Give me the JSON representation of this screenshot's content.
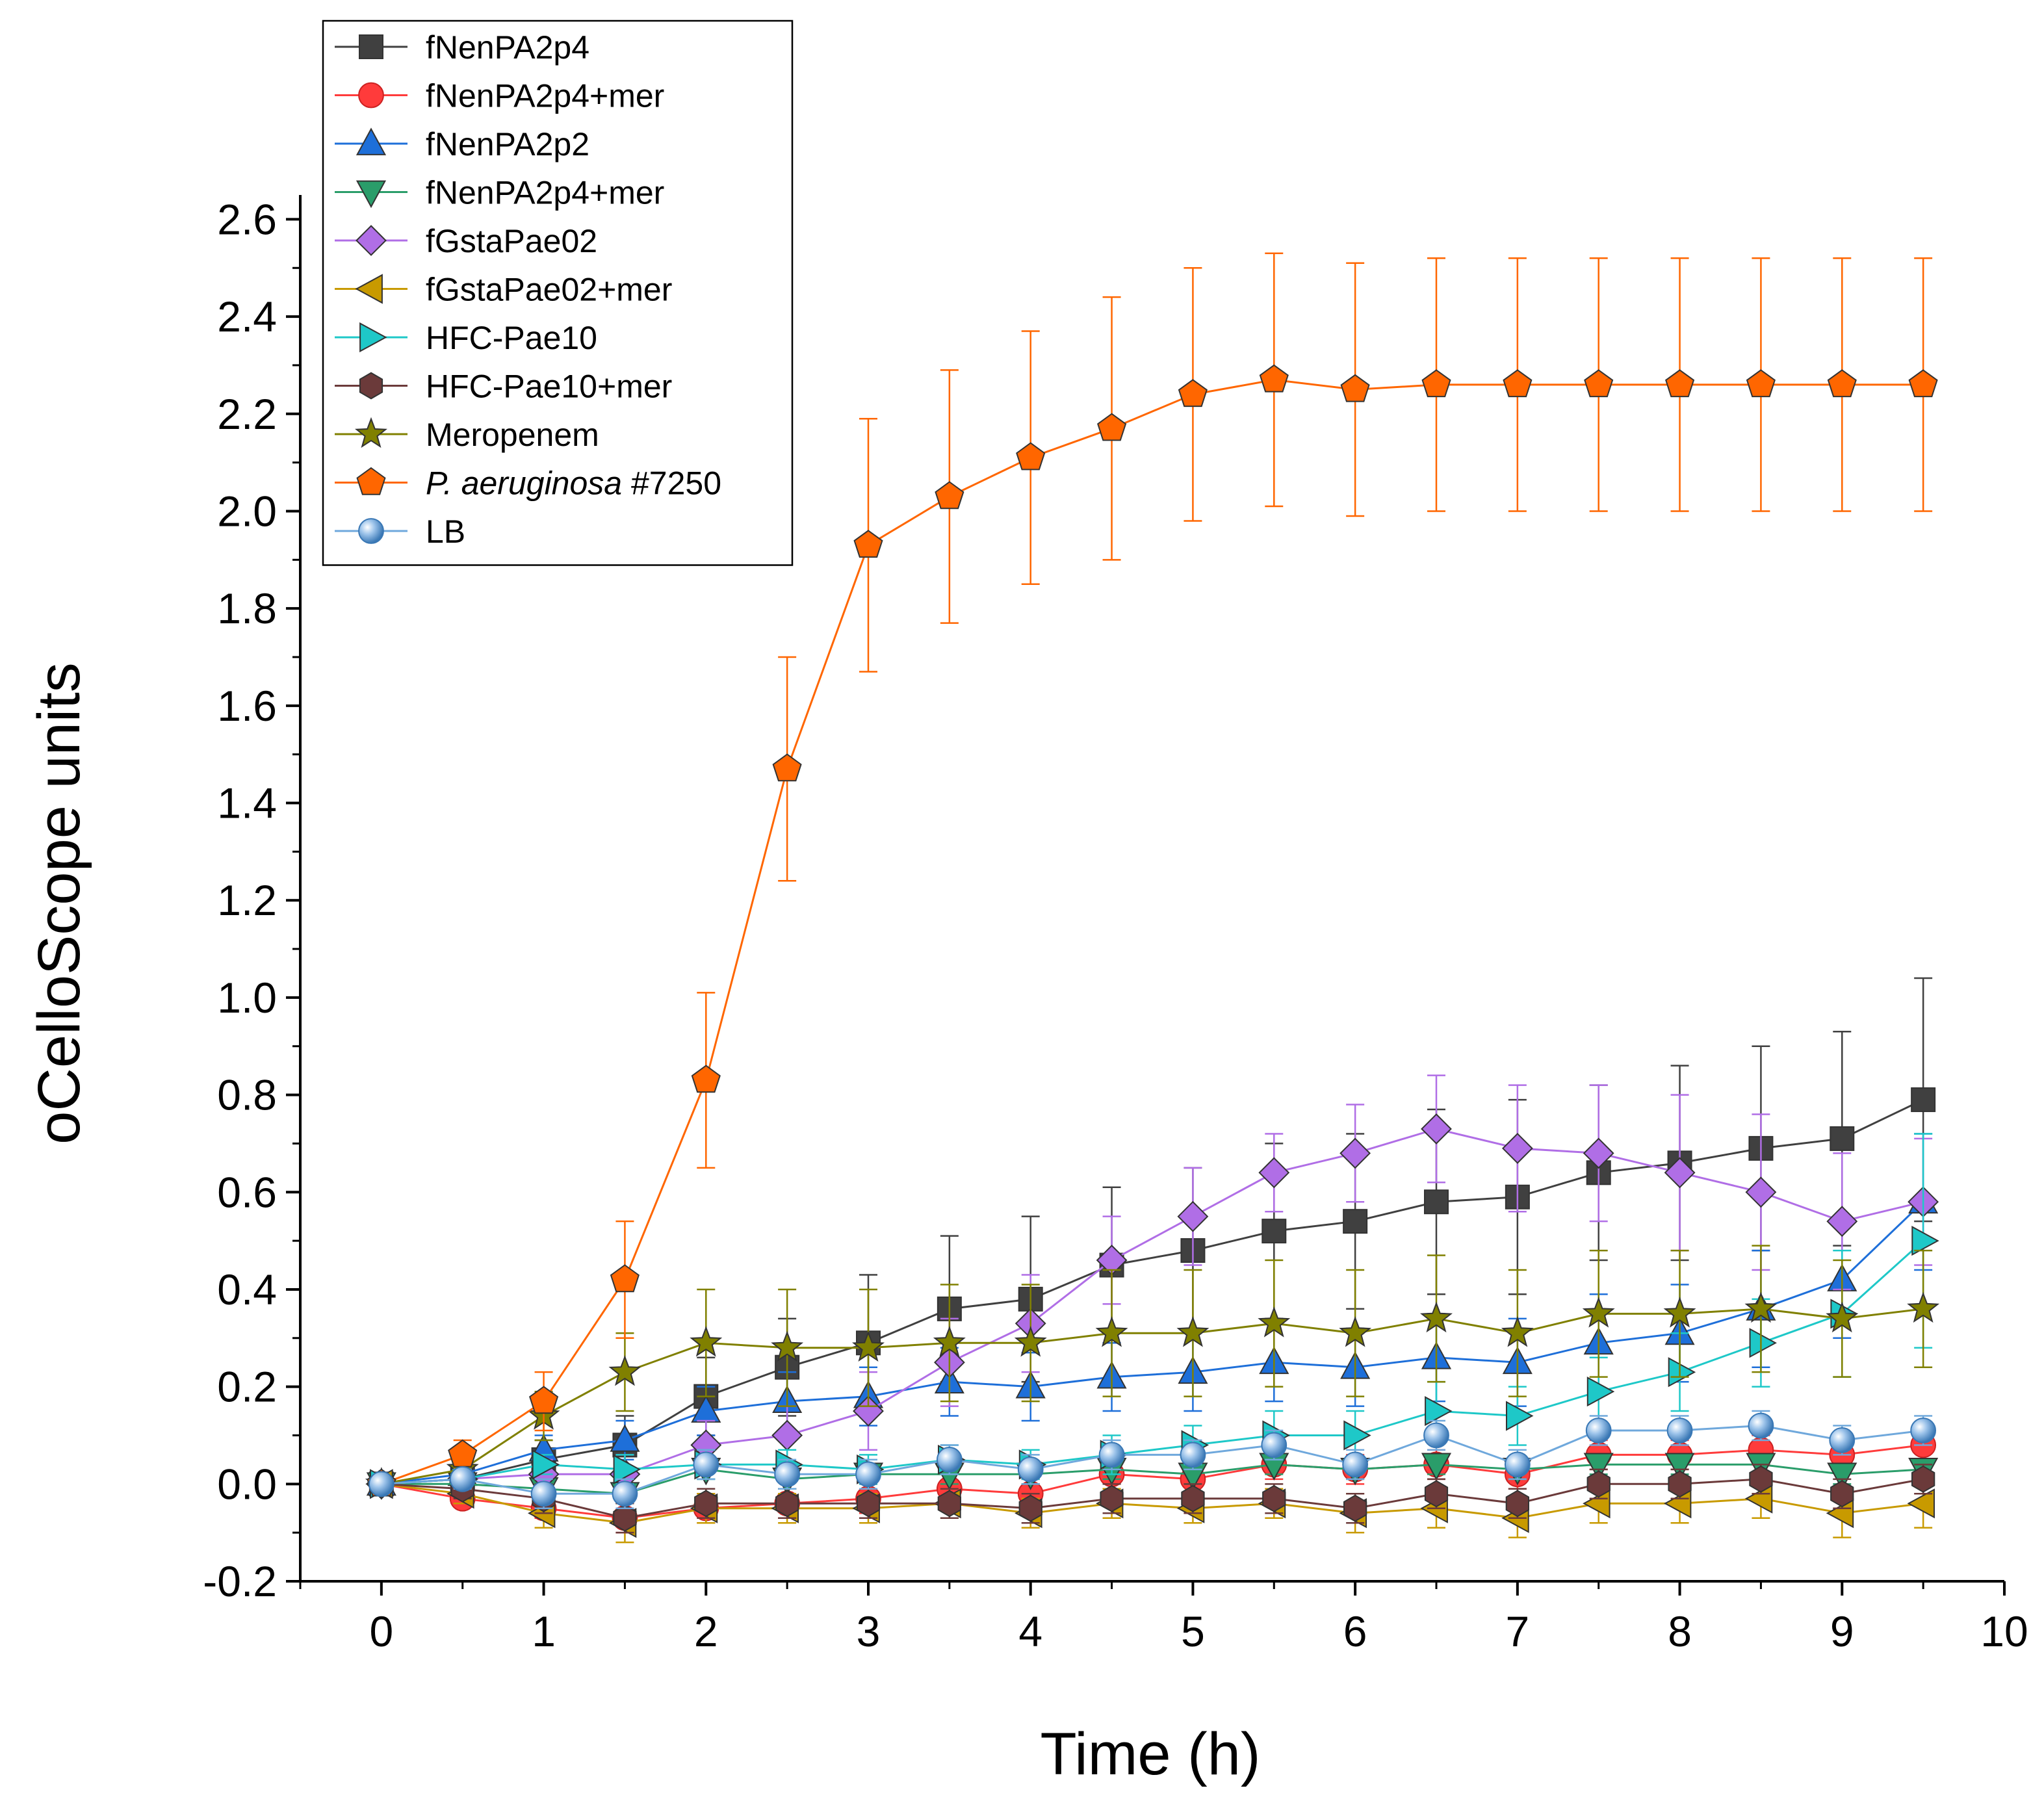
{
  "chart_data": {
    "type": "line",
    "title": "",
    "xlabel": "Time (h)",
    "ylabel": "oCelloScope units",
    "xlim": [
      -0.5,
      10
    ],
    "ylim": [
      -0.2,
      2.65
    ],
    "xticks": [
      "0",
      "1",
      "2",
      "3",
      "4",
      "5",
      "6",
      "7",
      "8",
      "9",
      "10"
    ],
    "yticks": [
      "-0.2",
      "0.0",
      "0.2",
      "0.4",
      "0.6",
      "0.8",
      "1.0",
      "1.2",
      "1.4",
      "1.6",
      "1.8",
      "2.0",
      "2.2",
      "2.4",
      "2.6"
    ],
    "legend_position": "top-left",
    "x": [
      0,
      0.5,
      1,
      1.5,
      2,
      2.5,
      3,
      3.5,
      4,
      4.5,
      5,
      5.5,
      6,
      6.5,
      7,
      7.5,
      8,
      8.5,
      9,
      9.5
    ],
    "series": [
      {
        "name": "fNenPA2p4",
        "color": "#404040",
        "marker": "square",
        "values": [
          0,
          0.01,
          0.05,
          0.08,
          0.18,
          0.24,
          0.29,
          0.36,
          0.38,
          0.45,
          0.48,
          0.52,
          0.54,
          0.58,
          0.59,
          0.64,
          0.66,
          0.69,
          0.71,
          0.79
        ],
        "errors": [
          0,
          0.02,
          0.04,
          0.06,
          0.08,
          0.1,
          0.14,
          0.15,
          0.17,
          0.16,
          0.17,
          0.18,
          0.18,
          0.19,
          0.2,
          0.18,
          0.2,
          0.21,
          0.22,
          0.25
        ]
      },
      {
        "name": "fNenPA2p4+mer",
        "color": "#ff3b3b",
        "marker": "circle",
        "values": [
          0,
          -0.03,
          -0.05,
          -0.07,
          -0.05,
          -0.04,
          -0.03,
          -0.01,
          -0.02,
          0.02,
          0.01,
          0.04,
          0.03,
          0.04,
          0.02,
          0.06,
          0.06,
          0.07,
          0.06,
          0.08
        ],
        "errors": [
          0,
          0.01,
          0.02,
          0.03,
          0.03,
          0.03,
          0.03,
          0.03,
          0.03,
          0.03,
          0.03,
          0.03,
          0.03,
          0.03,
          0.03,
          0.03,
          0.03,
          0.03,
          0.03,
          0.04
        ]
      },
      {
        "name": "fNenPA2p2",
        "color": "#1e6fd9",
        "marker": "triangle-up",
        "values": [
          0,
          0.02,
          0.07,
          0.09,
          0.15,
          0.17,
          0.18,
          0.21,
          0.2,
          0.22,
          0.23,
          0.25,
          0.24,
          0.26,
          0.25,
          0.29,
          0.31,
          0.36,
          0.42,
          0.58
        ],
        "errors": [
          0,
          0.02,
          0.03,
          0.04,
          0.05,
          0.06,
          0.06,
          0.07,
          0.07,
          0.07,
          0.08,
          0.08,
          0.08,
          0.09,
          0.09,
          0.1,
          0.1,
          0.12,
          0.12,
          0.14
        ]
      },
      {
        "name": "fNenPA2p4+mer",
        "color": "#2a9d6a",
        "marker": "triangle-down",
        "values": [
          0,
          0.0,
          -0.01,
          -0.02,
          0.03,
          0.01,
          0.02,
          0.02,
          0.02,
          0.03,
          0.02,
          0.04,
          0.03,
          0.04,
          0.03,
          0.04,
          0.04,
          0.04,
          0.02,
          0.03
        ],
        "errors": [
          0,
          0.01,
          0.02,
          0.02,
          0.02,
          0.02,
          0.02,
          0.02,
          0.02,
          0.02,
          0.02,
          0.02,
          0.02,
          0.02,
          0.02,
          0.02,
          0.02,
          0.02,
          0.02,
          0.02
        ]
      },
      {
        "name": "fGstaPae02",
        "color": "#b06ee6",
        "marker": "diamond",
        "values": [
          0,
          0.01,
          0.02,
          0.02,
          0.08,
          0.1,
          0.15,
          0.25,
          0.33,
          0.46,
          0.55,
          0.64,
          0.68,
          0.73,
          0.69,
          0.68,
          0.64,
          0.6,
          0.54,
          0.58
        ],
        "errors": [
          0,
          0.02,
          0.03,
          0.04,
          0.05,
          0.06,
          0.08,
          0.09,
          0.1,
          0.09,
          0.1,
          0.08,
          0.1,
          0.11,
          0.13,
          0.14,
          0.16,
          0.16,
          0.14,
          0.13
        ]
      },
      {
        "name": "fGstaPae02+mer",
        "color": "#c89a00",
        "marker": "triangle-left",
        "values": [
          0,
          -0.02,
          -0.06,
          -0.08,
          -0.05,
          -0.05,
          -0.05,
          -0.04,
          -0.06,
          -0.04,
          -0.05,
          -0.04,
          -0.06,
          -0.05,
          -0.07,
          -0.04,
          -0.04,
          -0.03,
          -0.06,
          -0.04
        ],
        "errors": [
          0,
          0.02,
          0.03,
          0.04,
          0.03,
          0.03,
          0.03,
          0.03,
          0.03,
          0.03,
          0.03,
          0.03,
          0.04,
          0.04,
          0.04,
          0.04,
          0.04,
          0.04,
          0.05,
          0.05
        ]
      },
      {
        "name": "HFC-Pae10",
        "color": "#1ec8c8",
        "marker": "triangle-right",
        "values": [
          0,
          0.01,
          0.04,
          0.03,
          0.04,
          0.04,
          0.03,
          0.05,
          0.04,
          0.06,
          0.08,
          0.1,
          0.1,
          0.15,
          0.14,
          0.19,
          0.23,
          0.29,
          0.35,
          0.5
        ],
        "errors": [
          0,
          0.02,
          0.02,
          0.03,
          0.03,
          0.03,
          0.03,
          0.03,
          0.03,
          0.04,
          0.04,
          0.05,
          0.05,
          0.06,
          0.06,
          0.07,
          0.08,
          0.09,
          0.13,
          0.22
        ]
      },
      {
        "name": "HFC-Pae10+mer",
        "color": "#6b3a3a",
        "marker": "hexagon",
        "values": [
          0,
          -0.01,
          -0.03,
          -0.07,
          -0.04,
          -0.04,
          -0.04,
          -0.04,
          -0.05,
          -0.03,
          -0.03,
          -0.03,
          -0.05,
          -0.02,
          -0.04,
          0.0,
          0.0,
          0.01,
          -0.02,
          0.01
        ],
        "errors": [
          0,
          0.02,
          0.03,
          0.03,
          0.03,
          0.03,
          0.03,
          0.03,
          0.03,
          0.03,
          0.03,
          0.03,
          0.03,
          0.03,
          0.03,
          0.03,
          0.03,
          0.03,
          0.03,
          0.03
        ]
      },
      {
        "name": "Meropenem",
        "color": "#808000",
        "marker": "star",
        "values": [
          0,
          0.03,
          0.14,
          0.23,
          0.29,
          0.28,
          0.28,
          0.29,
          0.29,
          0.31,
          0.31,
          0.33,
          0.31,
          0.34,
          0.31,
          0.35,
          0.35,
          0.36,
          0.34,
          0.36
        ],
        "errors": [
          0,
          0.03,
          0.05,
          0.08,
          0.11,
          0.12,
          0.12,
          0.12,
          0.12,
          0.13,
          0.13,
          0.13,
          0.13,
          0.13,
          0.13,
          0.13,
          0.13,
          0.13,
          0.12,
          0.12
        ]
      },
      {
        "name": "P. aeruginosa #7250",
        "name_italic": "P. aeruginosa",
        "name_rest": " #7250",
        "color": "#ff6600",
        "marker": "pentagon",
        "values": [
          0,
          0.06,
          0.17,
          0.42,
          0.83,
          1.47,
          1.93,
          2.03,
          2.11,
          2.17,
          2.24,
          2.27,
          2.25,
          2.26,
          2.26,
          2.26,
          2.26,
          2.26,
          2.26,
          2.26
        ],
        "errors": [
          0,
          0.03,
          0.06,
          0.12,
          0.18,
          0.23,
          0.26,
          0.26,
          0.26,
          0.27,
          0.26,
          0.26,
          0.26,
          0.26,
          0.26,
          0.26,
          0.26,
          0.26,
          0.26,
          0.26
        ]
      },
      {
        "name": "LB",
        "color": "#6fa8dc",
        "marker": "sphere",
        "values": [
          0,
          0.01,
          -0.02,
          -0.02,
          0.04,
          0.02,
          0.02,
          0.05,
          0.03,
          0.06,
          0.06,
          0.08,
          0.04,
          0.1,
          0.04,
          0.11,
          0.11,
          0.12,
          0.09,
          0.11
        ],
        "errors": [
          0,
          0.02,
          0.03,
          0.03,
          0.03,
          0.03,
          0.03,
          0.03,
          0.03,
          0.03,
          0.03,
          0.03,
          0.03,
          0.03,
          0.03,
          0.03,
          0.03,
          0.03,
          0.03,
          0.03
        ]
      }
    ]
  }
}
